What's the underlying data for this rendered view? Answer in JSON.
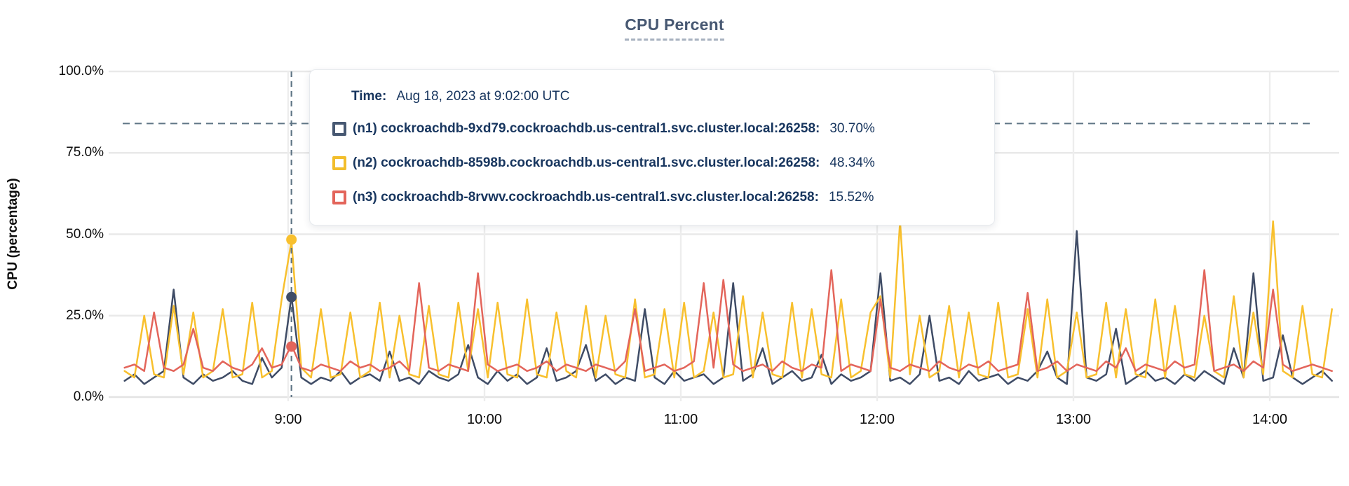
{
  "title": "CPU Percent",
  "tooltip": {
    "time_label": "Time:",
    "time_value": "Aug 18, 2023 at 9:02:00 UTC",
    "rows": [
      {
        "node": "n1",
        "name": "(n1) cockroachdb-9xd79.cockroachdb.us-central1.svc.cluster.local:26258:",
        "value": "30.70%",
        "color": "#475872"
      },
      {
        "node": "n2",
        "name": "(n2) cockroachdb-8598b.cockroachdb.us-central1.svc.cluster.local:26258:",
        "value": "48.34%",
        "color": "#f2be2c"
      },
      {
        "node": "n3",
        "name": "(n3) cockroachdb-8rvwv.cockroachdb.us-central1.svc.cluster.local:26258:",
        "value": "15.52%",
        "color": "#e3655b"
      }
    ]
  },
  "colors": {
    "grid": "#e9e9e9",
    "grid_zero": "#e3e3e3",
    "dashed_guides": "#5f7585",
    "title": "#475872",
    "tooltip_text": "#17355e"
  },
  "chart_data": {
    "type": "line",
    "title": "CPU Percent",
    "xlabel": "",
    "ylabel": "CPU (percentage)",
    "ylim": [
      0,
      100
    ],
    "grid": true,
    "legend_position": "tooltip-overlay",
    "y_ticks": [
      {
        "label": "0.0%",
        "value": 0
      },
      {
        "label": "25.0%",
        "value": 25
      },
      {
        "label": "50.0%",
        "value": 50
      },
      {
        "label": "75.0%",
        "value": 75
      },
      {
        "label": "100.0%",
        "value": 100
      }
    ],
    "x_ticks": [
      {
        "label": "9:00",
        "minute": 540
      },
      {
        "label": "10:00",
        "minute": 600
      },
      {
        "label": "11:00",
        "minute": 660
      },
      {
        "label": "12:00",
        "minute": 720
      },
      {
        "label": "13:00",
        "minute": 780
      },
      {
        "label": "14:00",
        "minute": 840
      }
    ],
    "x_start_minute": 490,
    "x_step_minute": 3,
    "threshold_percent": 84,
    "hover": {
      "minute": 541,
      "time": "Aug 18, 2023 at 9:02:00 UTC",
      "points": [
        {
          "node": "n1",
          "value": 30.7
        },
        {
          "node": "n2",
          "value": 48.34
        },
        {
          "node": "n3",
          "value": 15.52
        }
      ]
    },
    "series": [
      {
        "node": "n1",
        "name": "cockroachdb-9xd79.cockroachdb.us-central1.svc.cluster.local:26258",
        "color": "#3f4c66",
        "values": [
          5,
          7,
          4,
          6,
          8,
          33,
          6,
          4,
          7,
          5,
          6,
          8,
          5,
          4,
          12,
          6,
          9,
          31,
          6,
          4,
          6,
          5,
          8,
          4,
          6,
          7,
          5,
          14,
          5,
          6,
          4,
          8,
          6,
          5,
          7,
          16,
          6,
          4,
          8,
          5,
          7,
          4,
          6,
          15,
          5,
          6,
          8,
          16,
          5,
          7,
          4,
          6,
          5,
          27,
          6,
          4,
          8,
          5,
          6,
          7,
          4,
          6,
          35,
          5,
          7,
          15,
          4,
          6,
          8,
          5,
          6,
          13,
          4,
          7,
          5,
          6,
          8,
          38,
          5,
          6,
          4,
          7,
          25,
          5,
          6,
          4,
          8,
          5,
          6,
          7,
          4,
          6,
          5,
          8,
          14,
          6,
          4,
          51,
          6,
          5,
          7,
          21,
          4,
          6,
          8,
          5,
          6,
          4,
          7,
          5,
          8,
          6,
          4,
          15,
          6,
          38,
          5,
          6,
          19,
          6,
          4,
          6,
          8,
          5
        ]
      },
      {
        "node": "n2",
        "name": "cockroachdb-8598b.cockroachdb.us-central1.svc.cluster.local:26258",
        "color": "#f8c02e",
        "values": [
          8,
          6,
          25,
          7,
          6,
          28,
          7,
          26,
          6,
          8,
          27,
          6,
          7,
          29,
          6,
          8,
          30,
          48,
          9,
          6,
          27,
          6,
          7,
          26,
          6,
          8,
          29,
          6,
          25,
          7,
          6,
          28,
          7,
          6,
          29,
          8,
          27,
          6,
          29,
          7,
          6,
          30,
          7,
          6,
          26,
          8,
          6,
          28,
          6,
          25,
          7,
          6,
          30,
          6,
          7,
          27,
          6,
          29,
          6,
          8,
          26,
          6,
          7,
          31,
          6,
          26,
          7,
          6,
          29,
          6,
          27,
          7,
          6,
          30,
          6,
          8,
          26,
          31,
          6,
          54,
          7,
          25,
          6,
          8,
          28,
          6,
          26,
          7,
          6,
          29,
          6,
          7,
          27,
          6,
          30,
          6,
          8,
          26,
          6,
          7,
          29,
          6,
          27,
          7,
          6,
          30,
          6,
          28,
          7,
          6,
          25,
          8,
          6,
          31,
          6,
          26,
          7,
          54,
          8,
          6,
          28,
          7,
          6,
          27
        ]
      },
      {
        "node": "n3",
        "name": "cockroachdb-8rvwv.cockroachdb.us-central1.svc.cluster.local:26258",
        "color": "#e3655b",
        "values": [
          9,
          10,
          8,
          26,
          9,
          8,
          10,
          21,
          9,
          8,
          11,
          9,
          8,
          10,
          15,
          9,
          10,
          16,
          9,
          8,
          10,
          9,
          8,
          11,
          9,
          10,
          8,
          9,
          11,
          8,
          35,
          9,
          8,
          10,
          9,
          8,
          38,
          10,
          8,
          9,
          10,
          8,
          9,
          11,
          8,
          10,
          9,
          8,
          10,
          9,
          8,
          11,
          27,
          8,
          9,
          10,
          8,
          9,
          11,
          35,
          9,
          36,
          10,
          8,
          9,
          10,
          8,
          11,
          9,
          8,
          10,
          9,
          39,
          8,
          10,
          9,
          8,
          30,
          9,
          8,
          10,
          9,
          8,
          11,
          9,
          8,
          10,
          9,
          11,
          8,
          9,
          10,
          32,
          8,
          9,
          11,
          8,
          10,
          9,
          8,
          11,
          9,
          15,
          8,
          10,
          9,
          8,
          11,
          9,
          10,
          39,
          8,
          9,
          10,
          8,
          11,
          9,
          33,
          10,
          8,
          9,
          10,
          9,
          8
        ]
      }
    ]
  }
}
